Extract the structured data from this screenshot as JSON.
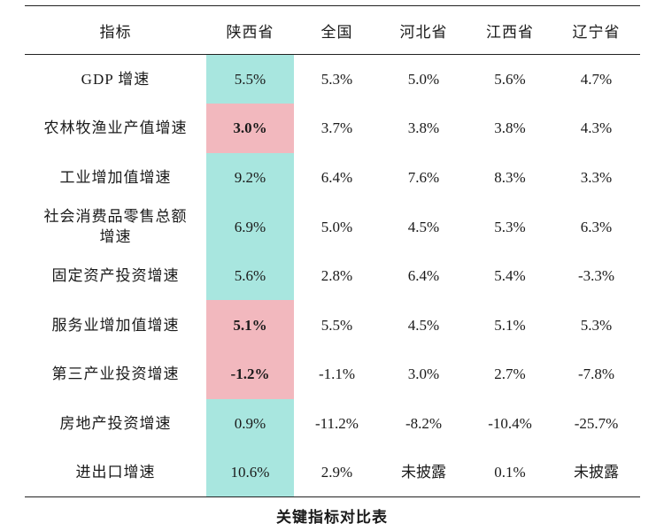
{
  "table": {
    "headers": [
      "指标",
      "陕西省",
      "全国",
      "河北省",
      "江西省",
      "辽宁省"
    ],
    "rows": [
      {
        "label": "GDP 增速",
        "values": [
          "5.5%",
          "5.3%",
          "5.0%",
          "5.6%",
          "4.7%"
        ],
        "highlight": "teal"
      },
      {
        "label": "农林牧渔业产值增速",
        "values": [
          "3.0%",
          "3.7%",
          "3.8%",
          "3.8%",
          "4.3%"
        ],
        "highlight": "pink"
      },
      {
        "label": "工业增加值增速",
        "values": [
          "9.2%",
          "6.4%",
          "7.6%",
          "8.3%",
          "3.3%"
        ],
        "highlight": "teal"
      },
      {
        "label": "社会消费品零售总额增速",
        "values": [
          "6.9%",
          "5.0%",
          "4.5%",
          "5.3%",
          "6.3%"
        ],
        "highlight": "teal"
      },
      {
        "label": "固定资产投资增速",
        "values": [
          "5.6%",
          "2.8%",
          "6.4%",
          "5.4%",
          "-3.3%"
        ],
        "highlight": "teal"
      },
      {
        "label": "服务业增加值增速",
        "values": [
          "5.1%",
          "5.5%",
          "4.5%",
          "5.1%",
          "5.3%"
        ],
        "highlight": "pink"
      },
      {
        "label": "第三产业投资增速",
        "values": [
          "-1.2%",
          "-1.1%",
          "3.0%",
          "2.7%",
          "-7.8%"
        ],
        "highlight": "pink"
      },
      {
        "label": "房地产投资增速",
        "values": [
          "0.9%",
          "-11.2%",
          "-8.2%",
          "-10.4%",
          "-25.7%"
        ],
        "highlight": "teal"
      },
      {
        "label": "进出口增速",
        "values": [
          "10.6%",
          "2.9%",
          "未披露",
          "0.1%",
          "未披露"
        ],
        "highlight": "teal"
      }
    ]
  },
  "caption": "关键指标对比表",
  "colors": {
    "teal": "#a8e6df",
    "pink": "#f2b8be"
  }
}
